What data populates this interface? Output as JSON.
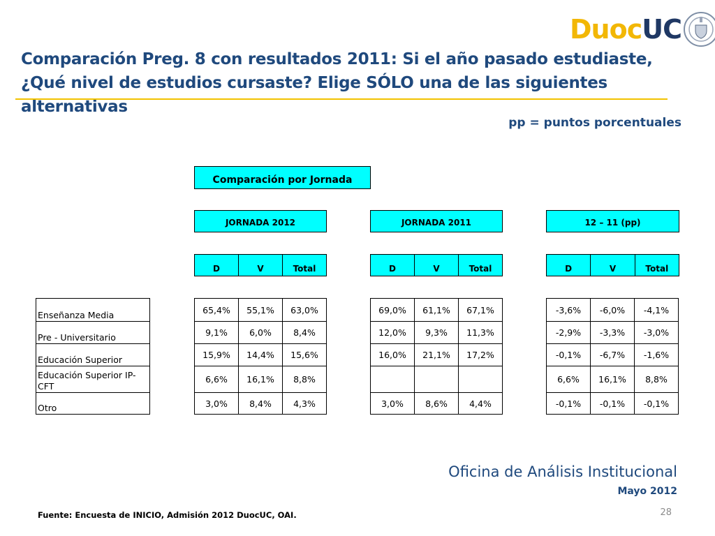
{
  "logo": {
    "duoc": "Duoc",
    "uc": "UC"
  },
  "title": {
    "line1": "Comparación Preg. 8 con resultados 2011: Si el año pasado estudiaste,",
    "line2": "¿Qué nivel de estudios cursaste? Elige SÓLO una de las siguientes alternativas"
  },
  "note": "pp = puntos porcentuales",
  "comparison_label": "Comparación por Jornada",
  "groups": [
    {
      "header": "JORNADA 2012",
      "cols": [
        "D",
        "V",
        "Total"
      ]
    },
    {
      "header": "JORNADA 2011",
      "cols": [
        "D",
        "V",
        "Total"
      ]
    },
    {
      "header": "12 – 11 (pp)",
      "cols": [
        "D",
        "V",
        "Total"
      ]
    }
  ],
  "rows": [
    {
      "label": "Enseñanza Media",
      "g2012": [
        "65,4%",
        "55,1%",
        "63,0%"
      ],
      "g2011": [
        "69,0%",
        "61,1%",
        "67,1%"
      ],
      "diff": [
        "-3,6%",
        "-6,0%",
        "-4,1%"
      ]
    },
    {
      "label": "Pre - Universitario",
      "g2012": [
        "9,1%",
        "6,0%",
        "8,4%"
      ],
      "g2011": [
        "12,0%",
        "9,3%",
        "11,3%"
      ],
      "diff": [
        "-2,9%",
        "-3,3%",
        "-3,0%"
      ]
    },
    {
      "label": "Educación Superior",
      "g2012": [
        "15,9%",
        "14,4%",
        "15,6%"
      ],
      "g2011": [
        "16,0%",
        "21,1%",
        "17,2%"
      ],
      "diff": [
        "-0,1%",
        "-6,7%",
        "-1,6%"
      ]
    },
    {
      "label": "Educación Superior IP-CFT",
      "label_line1": "Educación Superior IP-",
      "label_line2": "CFT",
      "g2012": [
        "6,6%",
        "16,1%",
        "8,8%"
      ],
      "g2011": [
        "",
        "",
        ""
      ],
      "diff": [
        "6,6%",
        "16,1%",
        "8,8%"
      ]
    },
    {
      "label": "Otro",
      "g2012": [
        "3,0%",
        "8,4%",
        "4,3%"
      ],
      "g2011": [
        "3,0%",
        "8,6%",
        "4,4%"
      ],
      "diff": [
        "-0,1%",
        "-0,1%",
        "-0,1%"
      ]
    }
  ],
  "footer": {
    "office": "Oficina de Análisis Institucional",
    "date": "Mayo 2012",
    "page": "28",
    "source": "Fuente: Encuesta de INICIO, Admisión 2012 DuocUC, OAI."
  },
  "colors": {
    "title": "#1f497d",
    "accent_rule": "#f2c200",
    "header_fill": "#00ffff",
    "logo_gold": "#f2b705",
    "logo_navy": "#1f3864"
  }
}
